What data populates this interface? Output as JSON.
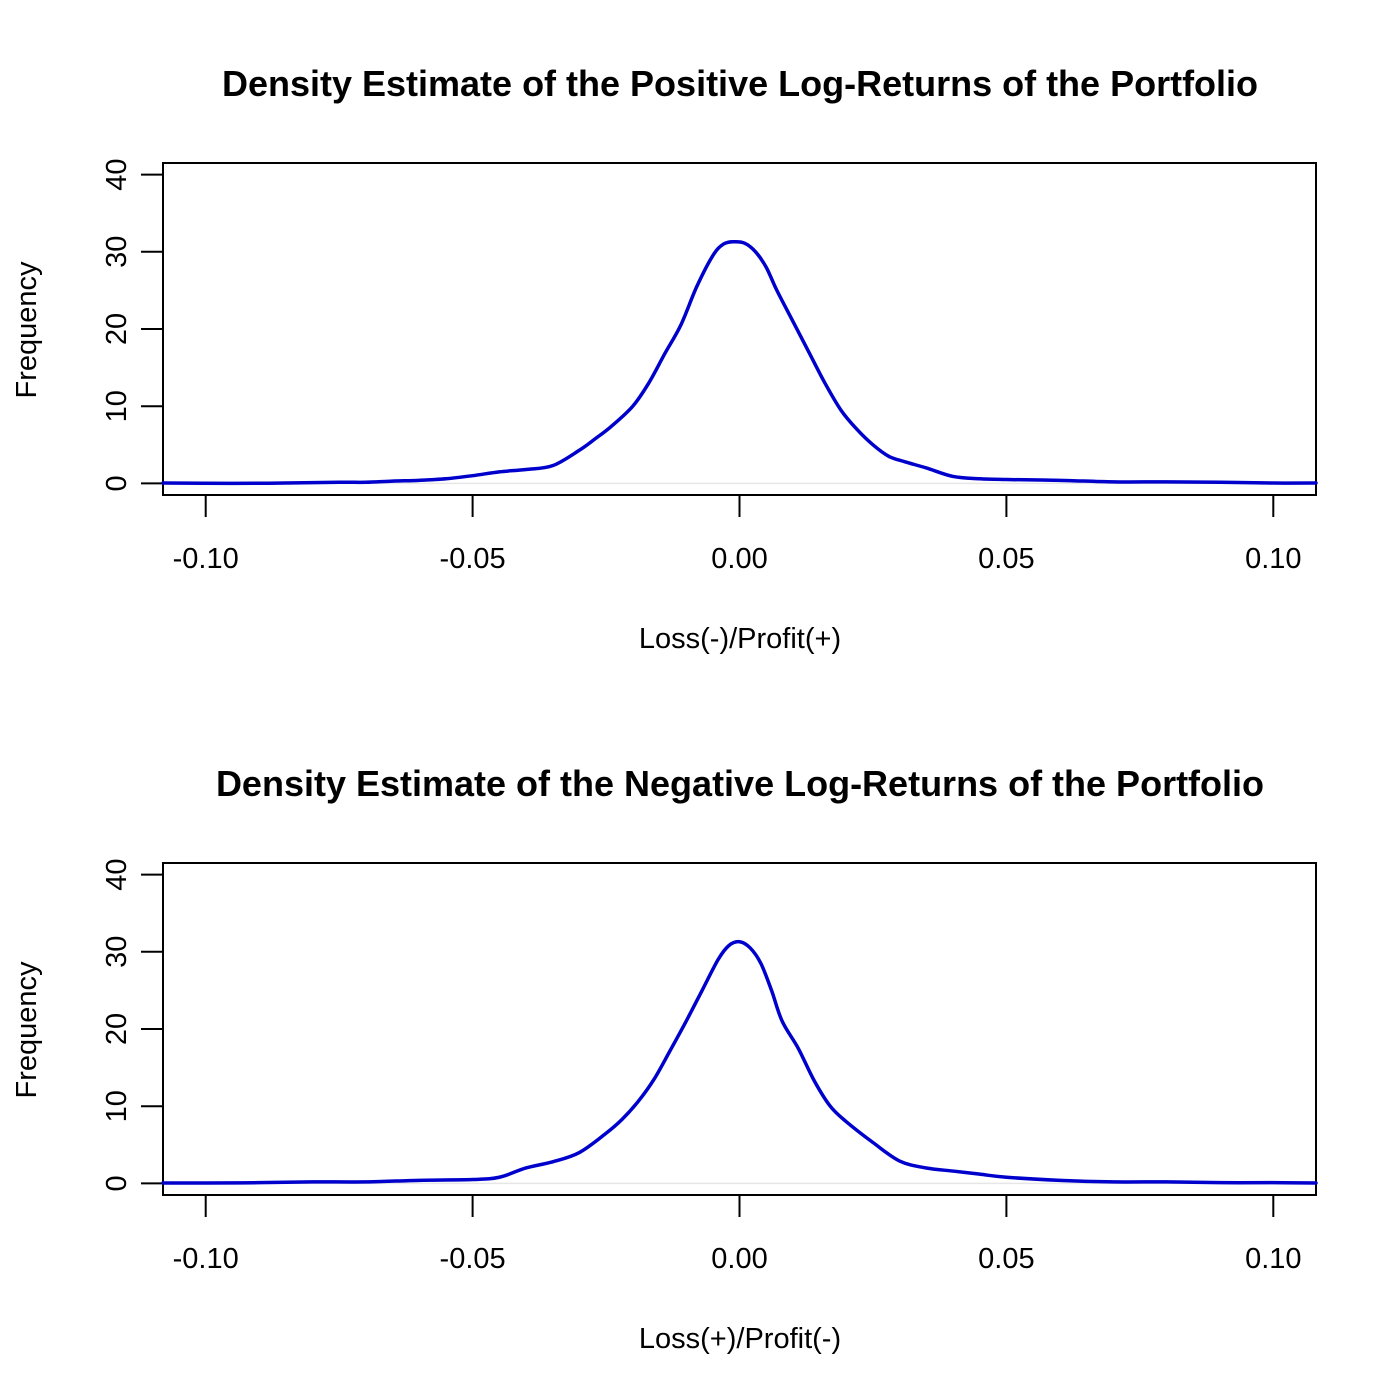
{
  "chart_data": [
    {
      "type": "line",
      "title": "Density Estimate of the Positive Log-Returns of the Portfolio",
      "xlabel": "Loss(-)/Profit(+)",
      "ylabel": "Frequency",
      "xlim": [
        -0.108,
        0.108
      ],
      "ylim": [
        -1.5,
        41.5
      ],
      "xticks": [
        -0.1,
        -0.05,
        0.0,
        0.05,
        0.1
      ],
      "xtick_labels": [
        "-0.10",
        "-0.05",
        "0.00",
        "0.05",
        "0.10"
      ],
      "yticks": [
        0,
        10,
        20,
        30,
        40
      ],
      "ytick_labels": [
        "0",
        "10",
        "20",
        "30",
        "40"
      ],
      "grid": false,
      "line_color": "#0000CC",
      "baseline_color": "#E6E6E6",
      "series": [
        {
          "x": [
            -0.108,
            -0.095,
            -0.085,
            -0.075,
            -0.07,
            -0.065,
            -0.06,
            -0.055,
            -0.05,
            -0.045,
            -0.04,
            -0.035,
            -0.03,
            -0.027,
            -0.024,
            -0.02,
            -0.017,
            -0.014,
            -0.011,
            -0.008,
            -0.005,
            -0.003,
            -0.001,
            0.001,
            0.003,
            0.005,
            0.007,
            0.01,
            0.013,
            0.016,
            0.019,
            0.022,
            0.025,
            0.028,
            0.031,
            0.035,
            0.04,
            0.045,
            0.05,
            0.06,
            0.07,
            0.08,
            0.09,
            0.1,
            0.108
          ],
          "y": [
            0.05,
            0.0,
            0.05,
            0.15,
            0.15,
            0.3,
            0.4,
            0.6,
            1.0,
            1.5,
            1.8,
            2.3,
            4.3,
            5.8,
            7.4,
            10.0,
            13.0,
            16.8,
            20.5,
            25.5,
            29.5,
            31.0,
            31.3,
            31.1,
            30.0,
            28.0,
            25.0,
            21.0,
            17.0,
            13.0,
            9.5,
            7.0,
            5.0,
            3.5,
            2.8,
            2.0,
            0.9,
            0.6,
            0.5,
            0.4,
            0.2,
            0.2,
            0.15,
            0.05,
            0.05
          ]
        }
      ]
    },
    {
      "type": "line",
      "title": "Density Estimate of the Negative Log-Returns of the Portfolio",
      "xlabel": "Loss(+)/Profit(-)",
      "ylabel": "Frequency",
      "xlim": [
        -0.108,
        0.108
      ],
      "ylim": [
        -1.5,
        41.5
      ],
      "xticks": [
        -0.1,
        -0.05,
        0.0,
        0.05,
        0.1
      ],
      "xtick_labels": [
        "-0.10",
        "-0.05",
        "0.00",
        "0.05",
        "0.10"
      ],
      "yticks": [
        0,
        10,
        20,
        30,
        40
      ],
      "ytick_labels": [
        "0",
        "10",
        "20",
        "30",
        "40"
      ],
      "grid": false,
      "line_color": "#0000CC",
      "baseline_color": "#E6E6E6",
      "series": [
        {
          "x": [
            -0.108,
            -0.1,
            -0.09,
            -0.08,
            -0.07,
            -0.06,
            -0.05,
            -0.045,
            -0.04,
            -0.035,
            -0.03,
            -0.025,
            -0.022,
            -0.019,
            -0.016,
            -0.013,
            -0.01,
            -0.007,
            -0.004,
            -0.002,
            0.0,
            0.002,
            0.004,
            0.006,
            0.008,
            0.011,
            0.014,
            0.017,
            0.02,
            0.025,
            0.03,
            0.035,
            0.04,
            0.045,
            0.05,
            0.06,
            0.07,
            0.08,
            0.09,
            0.1,
            0.108
          ],
          "y": [
            0.05,
            0.05,
            0.1,
            0.2,
            0.2,
            0.4,
            0.5,
            0.8,
            2.0,
            2.8,
            4.0,
            6.5,
            8.3,
            10.6,
            13.5,
            17.2,
            21.0,
            25.0,
            29.0,
            30.8,
            31.3,
            30.5,
            28.5,
            25.0,
            21.0,
            17.5,
            13.3,
            10.0,
            8.0,
            5.3,
            2.9,
            2.0,
            1.6,
            1.2,
            0.8,
            0.4,
            0.2,
            0.2,
            0.1,
            0.1,
            0.05
          ]
        }
      ]
    }
  ]
}
